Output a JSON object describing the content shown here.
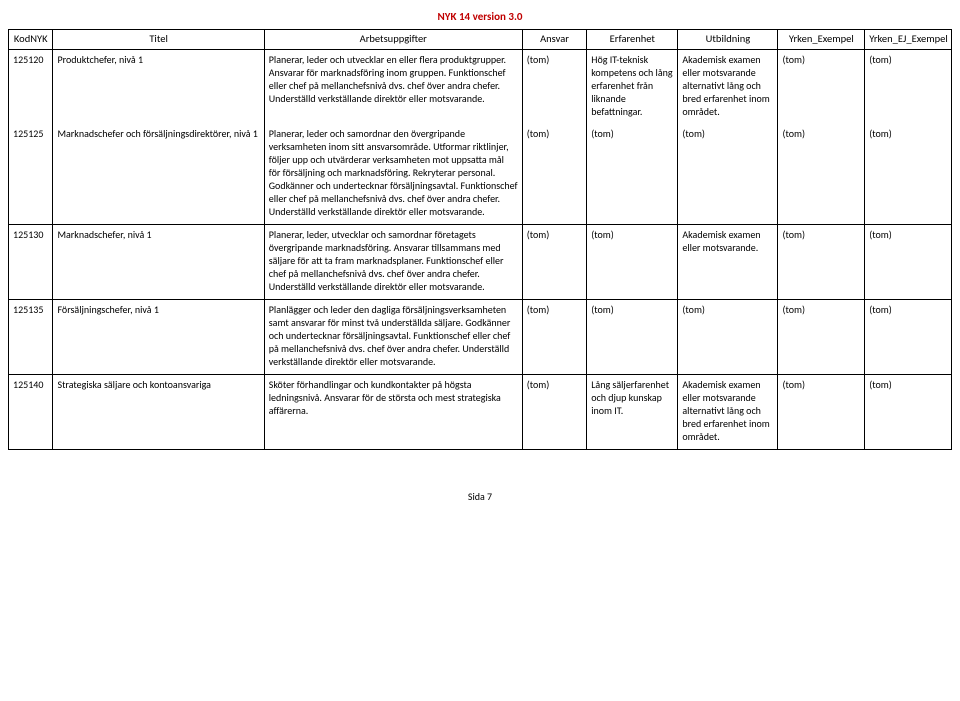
{
  "doc_title": "NYK 14 version 3.0",
  "footer": "Sida 7",
  "columns": {
    "kod": "KodNYK",
    "titel": "Titel",
    "arb": "Arbetsuppgifter",
    "ansvar": "Ansvar",
    "erf": "Erfarenhet",
    "utb": "Utbildning",
    "y1": "Yrken_Exempel",
    "y2": "Yrken_EJ_Exempel"
  },
  "rows": [
    {
      "kod": "125120",
      "titel": "Produktchefer, nivå 1",
      "arb": "Planerar, leder och utvecklar en eller flera produktgrupper. Ansvarar för marknadsföring inom gruppen. Funktionschef eller chef på mellanchefsnivå dvs. chef över andra chefer. Underställd verkställande direktör eller motsvarande.",
      "ansvar": "(tom)",
      "erf": "Hög IT-teknisk kompetens och lång erfarenhet från liknande befattningar.",
      "utb": "Akademisk examen eller motsvarande alternativt lång och bred erfarenhet inom området.",
      "y1": "(tom)",
      "y2": "(tom)"
    },
    {
      "kod": "125125",
      "titel": "Marknadschefer och försäljningsdirektörer, nivå 1",
      "arb": "Planerar, leder och samordnar den övergripande verksamheten inom sitt ansvarsområde. Utformar riktlinjer, följer upp och utvärderar verksamheten mot uppsatta mål för försäljning och marknadsföring. Rekryterar personal. Godkänner och undertecknar försäljningsavtal. Funktionschef eller chef på mellanchefsnivå dvs. chef över andra chefer. Underställd verkställande direktör eller motsvarande.",
      "ansvar": "(tom)",
      "erf": "(tom)",
      "utb": "(tom)",
      "y1": "(tom)",
      "y2": "(tom)"
    },
    {
      "kod": "125130",
      "titel": "Marknadschefer, nivå 1",
      "arb": "Planerar, leder, utvecklar och samordnar företagets övergripande marknadsföring. Ansvarar tillsammans med säljare för att ta fram marknadsplaner. Funktionschef eller chef på mellanchefsnivå dvs. chef över andra chefer. Underställd verkställande direktör eller motsvarande.",
      "ansvar": "(tom)",
      "erf": "(tom)",
      "utb": "Akademisk examen eller motsvarande.",
      "y1": "(tom)",
      "y2": "(tom)"
    },
    {
      "kod": "125135",
      "titel": "Försäljningschefer, nivå 1",
      "arb": "Planlägger och leder den dagliga försäljningsverksamheten samt ansvarar för minst två underställda säljare. Godkänner och undertecknar försäljningsavtal. Funktionschef eller chef på mellanchefsnivå dvs. chef över andra chefer. Underställd verkställande direktör eller motsvarande.",
      "ansvar": "(tom)",
      "erf": "(tom)",
      "utb": "(tom)",
      "y1": "(tom)",
      "y2": "(tom)"
    },
    {
      "kod": "125140",
      "titel": "Strategiska säljare och kontoansvariga",
      "arb": "Sköter förhandlingar och kundkontakter på högsta ledningsnivå. Ansvarar för de största och mest strategiska affärerna.",
      "ansvar": "(tom)",
      "erf": "Lång säljerfarenhet och djup kunskap inom IT.",
      "utb": "Akademisk examen eller motsvarande alternativt lång och bred erfarenhet inom området.",
      "y1": "(tom)",
      "y2": "(tom)"
    }
  ]
}
